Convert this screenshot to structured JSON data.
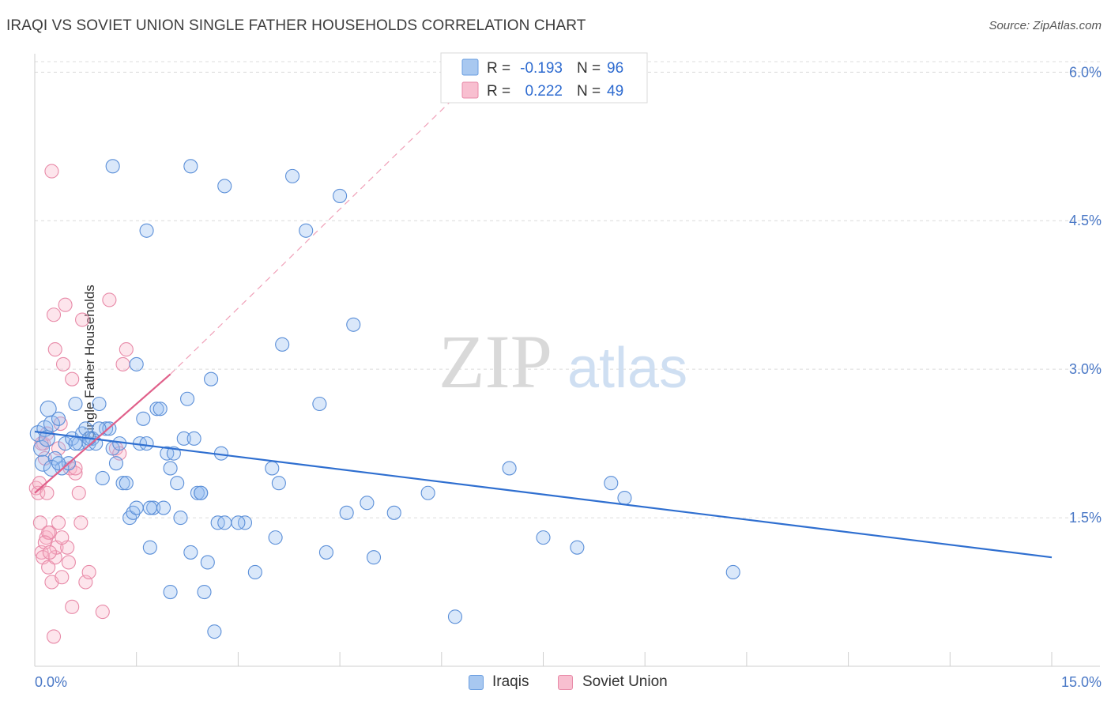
{
  "title": "IRAQI VS SOVIET UNION SINGLE FATHER HOUSEHOLDS CORRELATION CHART",
  "source": "Source: ZipAtlas.com",
  "watermark": {
    "zip": "ZIP",
    "atlas": "atlas"
  },
  "legend": {
    "r_label": "R =",
    "n_label": "N =",
    "rows": [
      {
        "r": "-0.193",
        "n": "96",
        "color": "#a8c8f0",
        "edge": "#6a9ee0"
      },
      {
        "r": "0.222",
        "n": "49",
        "color": "#f8bfd0",
        "edge": "#e88aa8"
      }
    ]
  },
  "bottom_legend": [
    "Iraqis",
    "Soviet Union"
  ],
  "colors": {
    "iraqis_fill": "rgba(150,190,240,0.35)",
    "iraqis_edge": "#5b8fd8",
    "iraqis_line": "#2f6fd0",
    "soviet_fill": "rgba(248,180,200,0.35)",
    "soviet_edge": "#e88aa8",
    "soviet_line": "#e0608a"
  },
  "chart_data": {
    "type": "scatter",
    "title": "IRAQI VS SOVIET UNION SINGLE FATHER HOUSEHOLDS CORRELATION CHART",
    "xlabel": "",
    "ylabel": "Single Father Households",
    "xlim": [
      0,
      15
    ],
    "ylim": [
      0,
      6.25
    ],
    "x_tick_labels": [
      "0.0%",
      "15.0%"
    ],
    "y_ticks": [
      1.5,
      3.0,
      4.5,
      6.0
    ],
    "y_tick_labels": [
      "1.5%",
      "3.0%",
      "4.5%",
      "6.0%"
    ],
    "grid": "horizontal dashed",
    "legend_position": "top-center",
    "series": [
      {
        "name": "Iraqis",
        "points": [
          [
            0.05,
            2.35
          ],
          [
            0.1,
            2.2
          ],
          [
            0.12,
            2.05
          ],
          [
            0.15,
            2.4
          ],
          [
            0.18,
            2.3
          ],
          [
            0.2,
            2.6
          ],
          [
            0.25,
            2.45
          ],
          [
            0.3,
            2.1
          ],
          [
            0.35,
            2.5
          ],
          [
            0.4,
            2.0
          ],
          [
            0.45,
            2.25
          ],
          [
            0.5,
            2.05
          ],
          [
            0.55,
            2.3
          ],
          [
            0.6,
            2.65
          ],
          [
            0.65,
            2.25
          ],
          [
            0.7,
            2.35
          ],
          [
            0.75,
            2.4
          ],
          [
            0.8,
            2.25
          ],
          [
            0.85,
            2.3
          ],
          [
            0.9,
            2.25
          ],
          [
            0.95,
            2.65
          ],
          [
            1.0,
            1.9
          ],
          [
            1.05,
            2.4
          ],
          [
            1.1,
            2.4
          ],
          [
            1.15,
            2.2
          ],
          [
            1.2,
            2.05
          ],
          [
            1.25,
            2.25
          ],
          [
            1.3,
            1.85
          ],
          [
            1.35,
            1.85
          ],
          [
            1.4,
            1.5
          ],
          [
            1.45,
            1.55
          ],
          [
            1.5,
            1.6
          ],
          [
            1.55,
            2.25
          ],
          [
            1.6,
            2.5
          ],
          [
            1.65,
            2.25
          ],
          [
            1.7,
            1.2
          ],
          [
            1.75,
            1.6
          ],
          [
            1.8,
            2.6
          ],
          [
            1.85,
            2.6
          ],
          [
            1.9,
            1.6
          ],
          [
            1.95,
            2.15
          ],
          [
            2.0,
            2.0
          ],
          [
            2.05,
            2.15
          ],
          [
            2.1,
            1.85
          ],
          [
            2.15,
            1.5
          ],
          [
            2.2,
            2.3
          ],
          [
            2.25,
            2.7
          ],
          [
            2.3,
            1.15
          ],
          [
            2.35,
            2.3
          ],
          [
            2.4,
            1.75
          ],
          [
            2.45,
            1.75
          ],
          [
            2.5,
            0.75
          ],
          [
            2.55,
            1.05
          ],
          [
            2.6,
            2.9
          ],
          [
            2.65,
            0.35
          ],
          [
            2.7,
            1.45
          ],
          [
            2.75,
            2.15
          ],
          [
            2.8,
            1.45
          ],
          [
            3.1,
            1.45
          ],
          [
            3.25,
            0.95
          ],
          [
            3.5,
            2.0
          ],
          [
            3.55,
            1.3
          ],
          [
            3.6,
            1.85
          ],
          [
            3.65,
            3.25
          ],
          [
            3.8,
            4.95
          ],
          [
            4.0,
            4.4
          ],
          [
            4.2,
            2.65
          ],
          [
            4.3,
            1.15
          ],
          [
            4.5,
            4.75
          ],
          [
            4.6,
            1.55
          ],
          [
            4.7,
            3.45
          ],
          [
            4.9,
            1.65
          ],
          [
            5.0,
            1.1
          ],
          [
            5.3,
            1.55
          ],
          [
            5.8,
            1.75
          ],
          [
            6.2,
            0.5
          ],
          [
            7.0,
            2.0
          ],
          [
            7.5,
            1.3
          ],
          [
            8.0,
            1.2
          ],
          [
            8.5,
            1.85
          ],
          [
            8.7,
            1.7
          ],
          [
            10.3,
            0.95
          ],
          [
            1.15,
            5.05
          ],
          [
            1.65,
            4.4
          ],
          [
            2.3,
            5.05
          ],
          [
            2.8,
            4.85
          ],
          [
            1.5,
            3.05
          ],
          [
            2.0,
            0.75
          ],
          [
            0.25,
            2.0
          ],
          [
            0.6,
            2.25
          ],
          [
            0.95,
            2.4
          ],
          [
            1.7,
            1.6
          ],
          [
            2.45,
            1.75
          ],
          [
            3.0,
            1.45
          ],
          [
            0.35,
            2.05
          ],
          [
            0.8,
            2.3
          ]
        ]
      },
      {
        "name": "Soviet Union",
        "points": [
          [
            0.02,
            1.8
          ],
          [
            0.05,
            1.75
          ],
          [
            0.07,
            1.85
          ],
          [
            0.08,
            1.45
          ],
          [
            0.1,
            1.15
          ],
          [
            0.12,
            1.1
          ],
          [
            0.13,
            2.25
          ],
          [
            0.15,
            2.1
          ],
          [
            0.17,
            1.3
          ],
          [
            0.18,
            2.35
          ],
          [
            0.2,
            1.0
          ],
          [
            0.22,
            1.35
          ],
          [
            0.25,
            0.85
          ],
          [
            0.28,
            0.3
          ],
          [
            0.3,
            1.1
          ],
          [
            0.32,
            1.2
          ],
          [
            0.35,
            1.45
          ],
          [
            0.38,
            2.45
          ],
          [
            0.4,
            0.9
          ],
          [
            0.42,
            3.05
          ],
          [
            0.45,
            3.65
          ],
          [
            0.48,
            1.2
          ],
          [
            0.5,
            1.05
          ],
          [
            0.52,
            2.0
          ],
          [
            0.55,
            2.9
          ],
          [
            0.6,
            1.95
          ],
          [
            0.65,
            1.75
          ],
          [
            0.68,
            1.45
          ],
          [
            0.7,
            3.5
          ],
          [
            0.75,
            0.85
          ],
          [
            0.8,
            0.95
          ],
          [
            0.3,
            3.2
          ],
          [
            0.28,
            3.55
          ],
          [
            0.25,
            5.0
          ],
          [
            0.2,
            1.35
          ],
          [
            1.0,
            0.55
          ],
          [
            1.1,
            3.7
          ],
          [
            1.2,
            2.2
          ],
          [
            1.25,
            2.15
          ],
          [
            1.3,
            3.05
          ],
          [
            1.35,
            3.2
          ],
          [
            0.55,
            0.6
          ],
          [
            0.4,
            1.3
          ],
          [
            0.35,
            2.2
          ],
          [
            0.6,
            2.0
          ],
          [
            0.18,
            1.75
          ],
          [
            0.1,
            2.25
          ],
          [
            0.15,
            1.25
          ],
          [
            0.22,
            1.15
          ]
        ]
      }
    ],
    "trend_lines": [
      {
        "name": "Iraqis",
        "from": [
          0.0,
          2.37
        ],
        "to": [
          15.0,
          1.1
        ]
      },
      {
        "name": "Soviet Union",
        "from": [
          0.0,
          1.75
        ],
        "to": [
          2.0,
          2.95
        ],
        "dashed_to": [
          6.5,
          5.95
        ]
      }
    ]
  }
}
